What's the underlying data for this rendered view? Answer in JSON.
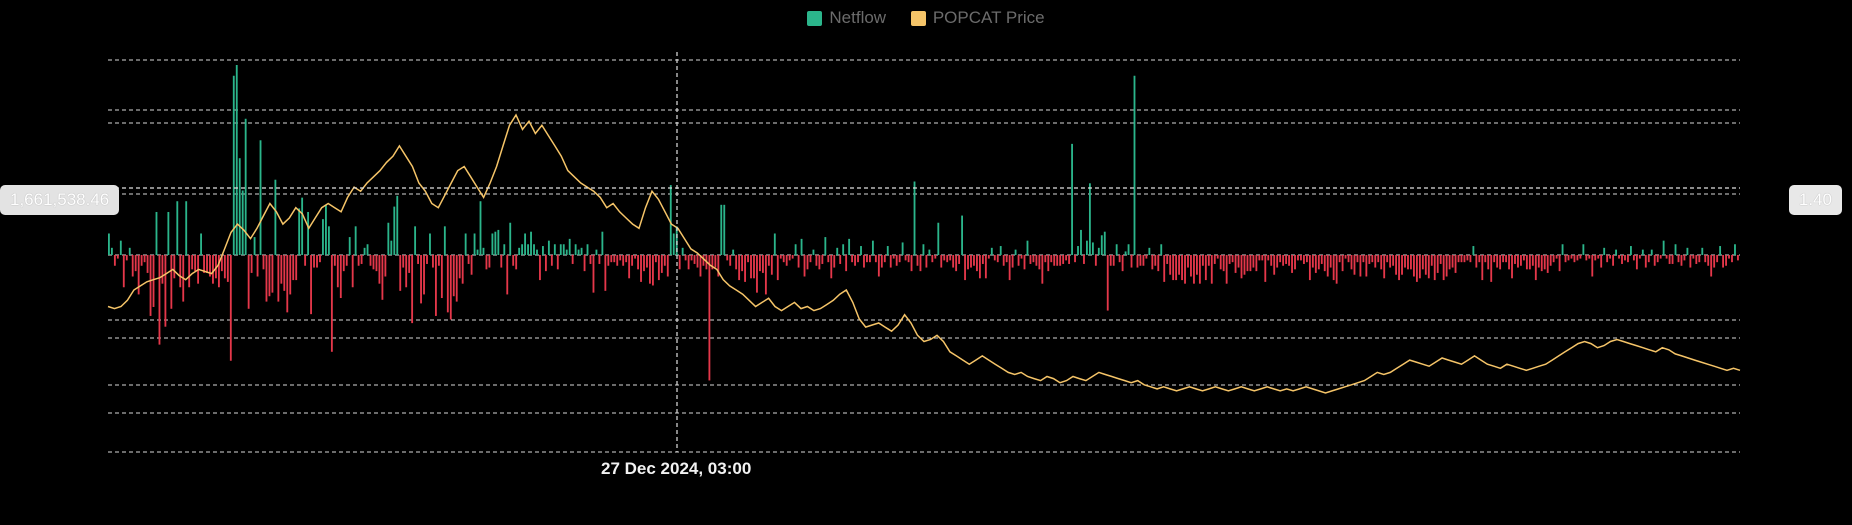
{
  "legend": {
    "netflow_label": "Netflow",
    "price_label": "POPCAT Price"
  },
  "crosshair": {
    "x_label": "27 Dec 2024, 03:00",
    "left_value": "1,661,538.46",
    "right_value": "1.40"
  },
  "colors": {
    "inflow": "#2bb58b",
    "outflow": "#e5374a",
    "price": "#f5c468",
    "grid": "#d9d9d9",
    "badge_bg": "#e3e3e3"
  },
  "chart_data": {
    "type": "bar",
    "grid": true,
    "legend_position": "top-center",
    "series": [
      {
        "name": "Netflow",
        "type": "bar",
        "values": [
          120,
          40,
          -60,
          -20,
          80,
          -180,
          -30,
          40,
          -120,
          -90,
          -220,
          -60,
          -40,
          -100,
          -340,
          -290,
          240,
          -500,
          -160,
          -400,
          240,
          -300,
          -130,
          300,
          -180,
          -260,
          300,
          -180,
          -80,
          -90,
          -160,
          120,
          -100,
          -100,
          -120,
          -160,
          -130,
          -180,
          -90,
          -130,
          -150,
          -590,
          1000,
          1060,
          540,
          360,
          760,
          -300,
          -100,
          100,
          -120,
          640,
          -80,
          -260,
          -230,
          -210,
          420,
          -260,
          -160,
          -200,
          -320,
          -220,
          -140,
          -140,
          260,
          320,
          -60,
          240,
          -330,
          -70,
          -70,
          -40,
          200,
          280,
          160,
          -540,
          -60,
          -180,
          -240,
          -90,
          -60,
          100,
          -180,
          160,
          -60,
          -50,
          40,
          60,
          -60,
          -80,
          -90,
          -160,
          -250,
          -120,
          180,
          80,
          270,
          330,
          -200,
          -70,
          -180,
          -100,
          -380,
          160,
          -50,
          -270,
          -220,
          -50,
          120,
          -70,
          -340,
          -60,
          -240,
          160,
          -320,
          -360,
          -230,
          -260,
          -130,
          -160,
          120,
          -50,
          -110,
          120,
          30,
          300,
          40,
          -80,
          -70,
          120,
          130,
          140,
          -70,
          60,
          -220,
          180,
          -60,
          -80,
          40,
          60,
          120,
          60,
          130,
          60,
          30,
          -140,
          50,
          -90,
          80,
          -60,
          60,
          -80,
          60,
          60,
          30,
          90,
          -50,
          60,
          30,
          40,
          -90,
          60,
          -50,
          -210,
          30,
          -50,
          130,
          -200,
          -60,
          -40,
          -40,
          -60,
          -30,
          -60,
          -40,
          -130,
          -60,
          -20,
          -80,
          -150,
          -90,
          -70,
          -160,
          -170,
          -40,
          -140,
          -100,
          -60,
          -120,
          390,
          120,
          160,
          -80,
          40,
          -30,
          -80,
          -30,
          -50,
          -70,
          -120,
          -60,
          -80,
          -700,
          -80,
          -70,
          -120,
          280,
          280,
          -30,
          -60,
          30,
          -80,
          -140,
          -90,
          -150,
          -40,
          -130,
          -130,
          -210,
          -90,
          -100,
          -220,
          -60,
          -110,
          120,
          -140,
          -20,
          -40,
          -60,
          -30,
          -20,
          60,
          -70,
          90,
          -120,
          -80,
          -40,
          30,
          -60,
          -80,
          -50,
          100,
          -40,
          -130,
          -70,
          40,
          -50,
          60,
          -90,
          90,
          -40,
          -60,
          -40,
          50,
          -70,
          -40,
          -40,
          80,
          -40,
          -120,
          -70,
          -40,
          50,
          -70,
          -20,
          -60,
          -40,
          70,
          -30,
          -40,
          -90,
          410,
          -60,
          -90,
          60,
          -70,
          30,
          -40,
          -20,
          180,
          -70,
          -30,
          -40,
          -30,
          -70,
          -90,
          -50,
          220,
          -140,
          -80,
          -70,
          -60,
          -90,
          -130,
          -50,
          -130,
          -20,
          40,
          -30,
          -40,
          50,
          -60,
          -40,
          -140,
          -70,
          30,
          -60,
          -20,
          -80,
          80,
          -50,
          -40,
          -60,
          -80,
          -160,
          -40,
          -90,
          -40,
          -60,
          -60,
          -60,
          -50,
          -30,
          -50,
          620,
          -40,
          50,
          140,
          -50,
          80,
          400,
          70,
          -60,
          40,
          110,
          130,
          -310,
          -60,
          -60,
          60,
          -40,
          -90,
          20,
          60,
          -70,
          1000,
          -70,
          -60,
          -60,
          -20,
          40,
          -80,
          -60,
          -90,
          60,
          -150,
          -50,
          -110,
          -140,
          -140,
          -110,
          -140,
          -160,
          -70,
          -120,
          -160,
          -110,
          -160,
          -60,
          -140,
          -60,
          -160,
          -50,
          -20,
          -80,
          -90,
          -160,
          -50,
          -40,
          -100,
          -70,
          -130,
          -110,
          -90,
          -90,
          -70,
          -90,
          -30,
          -30,
          -150,
          -30,
          -60,
          -110,
          -70,
          -40,
          -60,
          -50,
          -60,
          -100,
          -80,
          -30,
          -30,
          -50,
          -40,
          -140,
          -70,
          -100,
          -80,
          -50,
          -90,
          -120,
          -70,
          -140,
          -160,
          -40,
          -90,
          -20,
          -40,
          -80,
          -110,
          -40,
          -120,
          -40,
          -120,
          -50,
          -40,
          -70,
          -40,
          -80,
          -130,
          -40,
          -70,
          -60,
          -110,
          -140,
          -110,
          -70,
          -80,
          -80,
          -120,
          -150,
          -130,
          -80,
          -110,
          -130,
          -60,
          -140,
          -100,
          -50,
          -140,
          -120,
          -80,
          -70,
          -100,
          -40,
          -40,
          -40,
          -30,
          -40,
          50,
          -70,
          -40,
          -140,
          -40,
          -80,
          -150,
          -40,
          -70,
          -80,
          -40,
          -40,
          -80,
          -130,
          -50,
          -70,
          -60,
          -30,
          -80,
          -80,
          -60,
          -140,
          -70,
          -90,
          -80,
          -100,
          -60,
          -40,
          -20,
          -90,
          60,
          -40,
          -30,
          -20,
          -40,
          -30,
          -20,
          60,
          -30,
          -20,
          -120,
          -30,
          -20,
          -70,
          40,
          -40,
          -20,
          -60,
          30,
          -20,
          -50,
          -30,
          -40,
          50,
          -30,
          -80,
          -20,
          30,
          -70,
          -40,
          30,
          -60,
          -40,
          -20,
          80,
          -20,
          -50,
          -50,
          60,
          -40,
          -60,
          -30,
          40,
          -70,
          -20,
          -50,
          -40,
          40,
          -40,
          -60,
          -120,
          -70,
          -40,
          50,
          -70,
          -60,
          -20,
          -40,
          60,
          -30
        ]
      },
      {
        "name": "POPCAT Price",
        "type": "line",
        "values": [
          1.12,
          1.11,
          1.12,
          1.15,
          1.2,
          1.22,
          1.24,
          1.25,
          1.26,
          1.28,
          1.3,
          1.27,
          1.25,
          1.28,
          1.3,
          1.29,
          1.28,
          1.32,
          1.4,
          1.48,
          1.52,
          1.49,
          1.45,
          1.5,
          1.56,
          1.62,
          1.58,
          1.52,
          1.55,
          1.6,
          1.57,
          1.5,
          1.55,
          1.6,
          1.62,
          1.6,
          1.58,
          1.65,
          1.7,
          1.68,
          1.72,
          1.75,
          1.78,
          1.82,
          1.85,
          1.9,
          1.85,
          1.8,
          1.72,
          1.68,
          1.62,
          1.6,
          1.66,
          1.72,
          1.78,
          1.8,
          1.75,
          1.7,
          1.65,
          1.72,
          1.8,
          1.9,
          2.0,
          2.05,
          1.98,
          2.02,
          1.96,
          2.0,
          1.95,
          1.9,
          1.85,
          1.78,
          1.75,
          1.72,
          1.7,
          1.68,
          1.65,
          1.6,
          1.62,
          1.58,
          1.55,
          1.52,
          1.5,
          1.6,
          1.68,
          1.64,
          1.58,
          1.52,
          1.5,
          1.45,
          1.4,
          1.38,
          1.35,
          1.32,
          1.3,
          1.25,
          1.22,
          1.2,
          1.18,
          1.15,
          1.12,
          1.14,
          1.16,
          1.12,
          1.1,
          1.12,
          1.14,
          1.11,
          1.12,
          1.1,
          1.11,
          1.13,
          1.15,
          1.18,
          1.2,
          1.14,
          1.06,
          1.02,
          1.03,
          1.04,
          1.02,
          1.0,
          1.03,
          1.08,
          1.04,
          0.98,
          0.95,
          0.96,
          0.98,
          0.95,
          0.9,
          0.88,
          0.86,
          0.84,
          0.86,
          0.88,
          0.86,
          0.84,
          0.82,
          0.8,
          0.79,
          0.8,
          0.78,
          0.77,
          0.76,
          0.78,
          0.77,
          0.75,
          0.76,
          0.78,
          0.77,
          0.76,
          0.78,
          0.8,
          0.79,
          0.78,
          0.77,
          0.76,
          0.75,
          0.76,
          0.74,
          0.73,
          0.72,
          0.73,
          0.72,
          0.71,
          0.72,
          0.73,
          0.72,
          0.71,
          0.72,
          0.73,
          0.72,
          0.71,
          0.72,
          0.73,
          0.72,
          0.71,
          0.72,
          0.73,
          0.72,
          0.71,
          0.72,
          0.71,
          0.72,
          0.73,
          0.72,
          0.71,
          0.7,
          0.71,
          0.72,
          0.73,
          0.74,
          0.75,
          0.76,
          0.78,
          0.8,
          0.79,
          0.8,
          0.82,
          0.84,
          0.86,
          0.85,
          0.84,
          0.83,
          0.85,
          0.87,
          0.86,
          0.85,
          0.84,
          0.86,
          0.88,
          0.86,
          0.84,
          0.83,
          0.82,
          0.84,
          0.83,
          0.82,
          0.81,
          0.82,
          0.83,
          0.84,
          0.86,
          0.88,
          0.9,
          0.92,
          0.94,
          0.95,
          0.94,
          0.92,
          0.93,
          0.95,
          0.96,
          0.95,
          0.94,
          0.93,
          0.92,
          0.91,
          0.9,
          0.92,
          0.91,
          0.89,
          0.88,
          0.87,
          0.86,
          0.85,
          0.84,
          0.83,
          0.82,
          0.81,
          0.82,
          0.81
        ]
      }
    ]
  }
}
